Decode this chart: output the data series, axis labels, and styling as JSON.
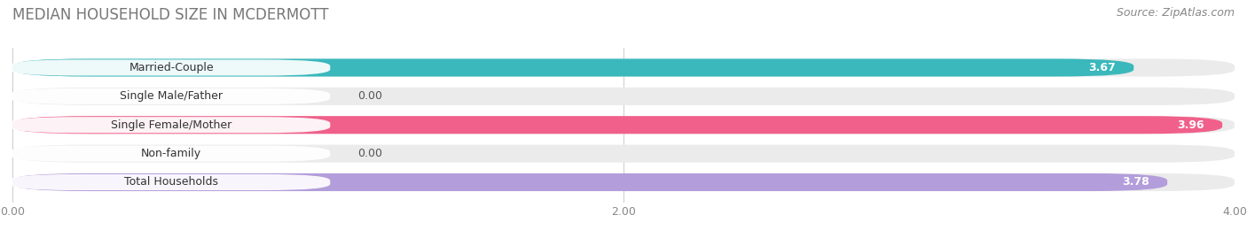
{
  "title": "MEDIAN HOUSEHOLD SIZE IN MCDERMOTT",
  "source": "Source: ZipAtlas.com",
  "categories": [
    "Married-Couple",
    "Single Male/Father",
    "Single Female/Mother",
    "Non-family",
    "Total Households"
  ],
  "values": [
    3.67,
    0.0,
    3.96,
    0.0,
    3.78
  ],
  "bar_colors": [
    "#3ab8bc",
    "#a8bce8",
    "#f0608a",
    "#f5c99a",
    "#b39ddb"
  ],
  "bar_bg_colors": [
    "#ebebeb",
    "#ebebeb",
    "#ebebeb",
    "#ebebeb",
    "#ebebeb"
  ],
  "label_bg_colors": [
    "#3ab8bc",
    "#a8bce8",
    "#f0608a",
    "#f5c99a",
    "#b39ddb"
  ],
  "xlim": [
    0,
    4.0
  ],
  "xticks": [
    0.0,
    2.0,
    4.0
  ],
  "xtick_labels": [
    "0.00",
    "2.00",
    "4.00"
  ],
  "title_fontsize": 12,
  "source_fontsize": 9,
  "bar_label_fontsize": 9,
  "category_fontsize": 9,
  "bar_height": 0.62,
  "background_color": "#ffffff"
}
